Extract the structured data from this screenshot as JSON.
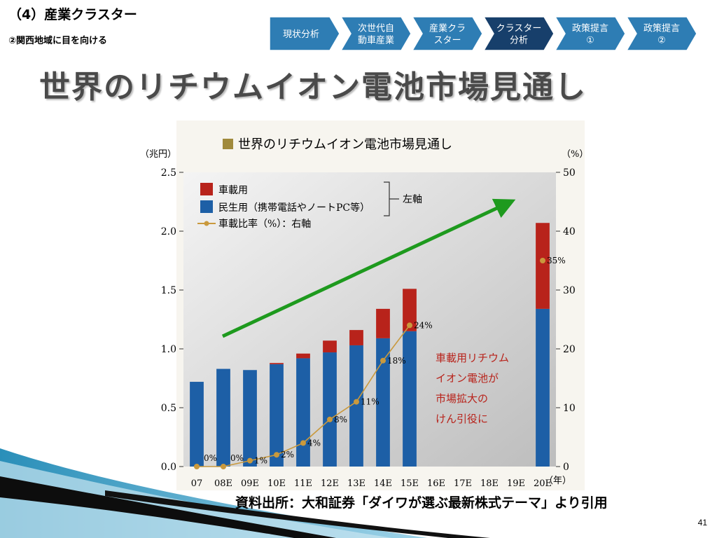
{
  "header": {
    "section_title": "（4）産業クラスター",
    "sub_title": "②関西地域に目を向ける"
  },
  "nav": {
    "steps": [
      {
        "lines": [
          "現状分析"
        ],
        "active": false
      },
      {
        "lines": [
          "次世代自",
          "動車産業"
        ],
        "active": false
      },
      {
        "lines": [
          "産業クラ",
          "スター"
        ],
        "active": false
      },
      {
        "lines": [
          "クラスター",
          "分析"
        ],
        "active": true
      },
      {
        "lines": [
          "政策提言",
          "①"
        ],
        "active": false
      },
      {
        "lines": [
          "政策提言",
          "②"
        ],
        "active": false
      }
    ],
    "colors": {
      "normal": "#2e7db4",
      "active": "#173f6b",
      "stroke": "#ffffff"
    }
  },
  "main_title": "世界のリチウムイオン電池市場見通し",
  "chart_data": {
    "type": "bar",
    "title": "世界のリチウムイオン電池市場見通し",
    "y_left_unit": "（兆円）",
    "y_right_unit": "（%）",
    "x_unit": "（年）",
    "ylim": [
      0,
      2.5
    ],
    "y_ticks": [
      "0.0",
      "0.5",
      "1.0",
      "1.5",
      "2.0",
      "2.5"
    ],
    "y_right_lim": [
      0,
      50
    ],
    "y_right_ticks": [
      "0",
      "10",
      "20",
      "30",
      "40",
      "50"
    ],
    "categories": [
      "07",
      "08E",
      "09E",
      "10E",
      "11E",
      "12E",
      "13E",
      "14E",
      "15E",
      "16E",
      "17E",
      "18E",
      "19E",
      "20E"
    ],
    "series": [
      {
        "name": "車載用",
        "type": "bar",
        "stack": "left",
        "color": "#b8231b",
        "values": [
          0,
          0,
          0,
          0.01,
          0.04,
          0.1,
          0.13,
          0.25,
          0.36,
          null,
          null,
          null,
          null,
          0.73
        ]
      },
      {
        "name": "民生用（携帯電話やノートPC等）",
        "type": "bar",
        "stack": "left",
        "color": "#1d5fa6",
        "values": [
          0.72,
          0.83,
          0.82,
          0.87,
          0.92,
          0.97,
          1.03,
          1.09,
          1.15,
          null,
          null,
          null,
          null,
          1.34
        ]
      },
      {
        "name": "車載比率（%）：右軸",
        "type": "line",
        "axis": "right",
        "color": "#c9993d",
        "values": [
          0,
          0,
          1,
          2,
          4,
          8,
          11,
          18,
          24,
          null,
          null,
          null,
          null,
          35
        ],
        "labels": [
          "0%",
          "0%",
          "1%",
          "2%",
          "4%",
          "8%",
          "11%",
          "18%",
          "24%",
          "",
          "",
          "",
          "",
          "35%"
        ]
      }
    ],
    "legend_bracket_text": "左軸",
    "legend_position": "top-left",
    "annotation": [
      "車載用リチウム",
      "イオン電池が",
      "市場拡大の",
      "けん引役に"
    ],
    "annotation_color": "#b8231b",
    "trend_arrow_color": "#1e9a1e",
    "title_marker_color": "#a08a3c"
  },
  "source": "資料出所：大和証券「ダイワが選ぶ最新株式テーマ」より引用",
  "page_number": "41"
}
